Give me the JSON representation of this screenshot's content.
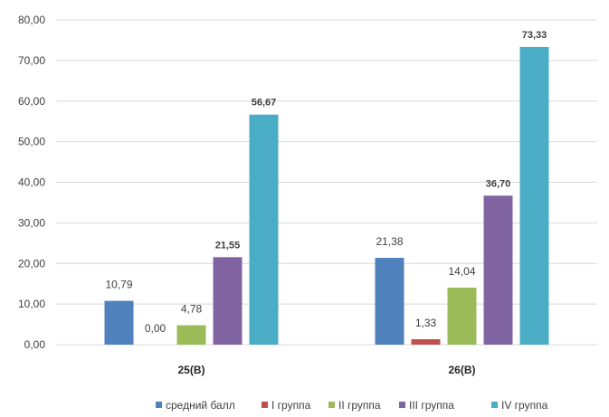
{
  "chart_data": {
    "type": "bar",
    "categories": [
      "25(B)",
      "26(B)"
    ],
    "series": [
      {
        "name": "средний балл",
        "color": "#4F81BD",
        "values": [
          10.79,
          21.38
        ],
        "labels": [
          "10,79",
          "21,38"
        ],
        "label_bold": false
      },
      {
        "name": "I группа",
        "color": "#C0504D",
        "values": [
          0.0,
          1.33
        ],
        "labels": [
          "0,00",
          "1,33"
        ],
        "label_bold": false
      },
      {
        "name": "II группа",
        "color": "#9BBB59",
        "values": [
          4.78,
          14.04
        ],
        "labels": [
          "4,78",
          "14,04"
        ],
        "label_bold": false
      },
      {
        "name": "III группа",
        "color": "#8064A2",
        "values": [
          21.55,
          36.7
        ],
        "labels": [
          "21,55",
          "36,70"
        ],
        "label_bold": true
      },
      {
        "name": "IV группа",
        "color": "#4BACC6",
        "values": [
          56.67,
          73.33
        ],
        "labels": [
          "56,67",
          "73,33"
        ],
        "label_bold": true
      }
    ],
    "y_ticks": [
      "0,00",
      "10,00",
      "20,00",
      "30,00",
      "40,00",
      "50,00",
      "60,00",
      "70,00",
      "80,00"
    ],
    "ylim": [
      0,
      80
    ],
    "grid": true,
    "legend_position": "bottom-right"
  }
}
